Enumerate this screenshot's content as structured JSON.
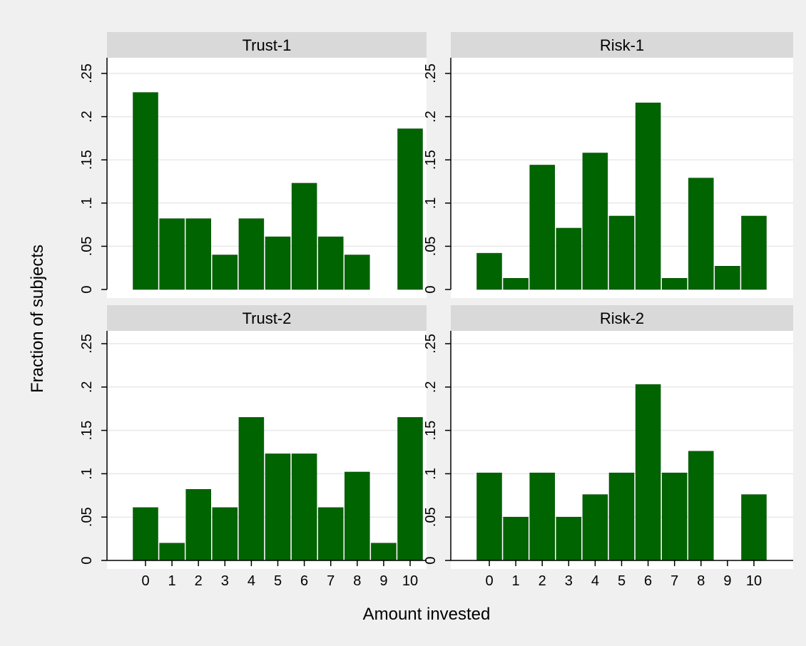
{
  "chart_data": {
    "type": "bar",
    "xlabel": "Amount invested",
    "ylabel": "Fraction of subjects",
    "x_ticks": [
      "0",
      "1",
      "2",
      "3",
      "4",
      "5",
      "6",
      "7",
      "8",
      "9",
      "10"
    ],
    "y_ticks": [
      0,
      0.05,
      0.1,
      0.15,
      0.2,
      0.25
    ],
    "y_tick_labels": [
      "0",
      ".05",
      ".1",
      ".15",
      ".2",
      ".25"
    ],
    "ylim": [
      0,
      0.25
    ],
    "grid": true,
    "panels": [
      {
        "title": "Trust-1",
        "categories": [
          0,
          1,
          2,
          3,
          4,
          5,
          6,
          7,
          8,
          9,
          10
        ],
        "values": [
          0.228,
          0.082,
          0.082,
          0.04,
          0.082,
          0.061,
          0.123,
          0.061,
          0.04,
          0.0,
          0.186
        ]
      },
      {
        "title": "Risk-1",
        "categories": [
          0,
          1,
          2,
          3,
          4,
          5,
          6,
          7,
          8,
          9,
          10
        ],
        "values": [
          0.042,
          0.013,
          0.144,
          0.071,
          0.158,
          0.085,
          0.216,
          0.013,
          0.129,
          0.027,
          0.085
        ]
      },
      {
        "title": "Trust-2",
        "categories": [
          0,
          1,
          2,
          3,
          4,
          5,
          6,
          7,
          8,
          9,
          10
        ],
        "values": [
          0.061,
          0.02,
          0.082,
          0.061,
          0.165,
          0.123,
          0.123,
          0.061,
          0.102,
          0.02,
          0.165
        ]
      },
      {
        "title": "Risk-2",
        "categories": [
          0,
          1,
          2,
          3,
          4,
          5,
          6,
          7,
          8,
          9,
          10
        ],
        "values": [
          0.101,
          0.05,
          0.101,
          0.05,
          0.076,
          0.101,
          0.203,
          0.101,
          0.126,
          0.0,
          0.076
        ]
      }
    ]
  },
  "colors": {
    "bar": "#006400",
    "bar_outline": "#004600",
    "outer_background": "#f0f0f0",
    "plot_background": "#ffffff",
    "strip_background": "#d9d9d9",
    "grid": "#e8e8e8",
    "axis": "#000000"
  }
}
